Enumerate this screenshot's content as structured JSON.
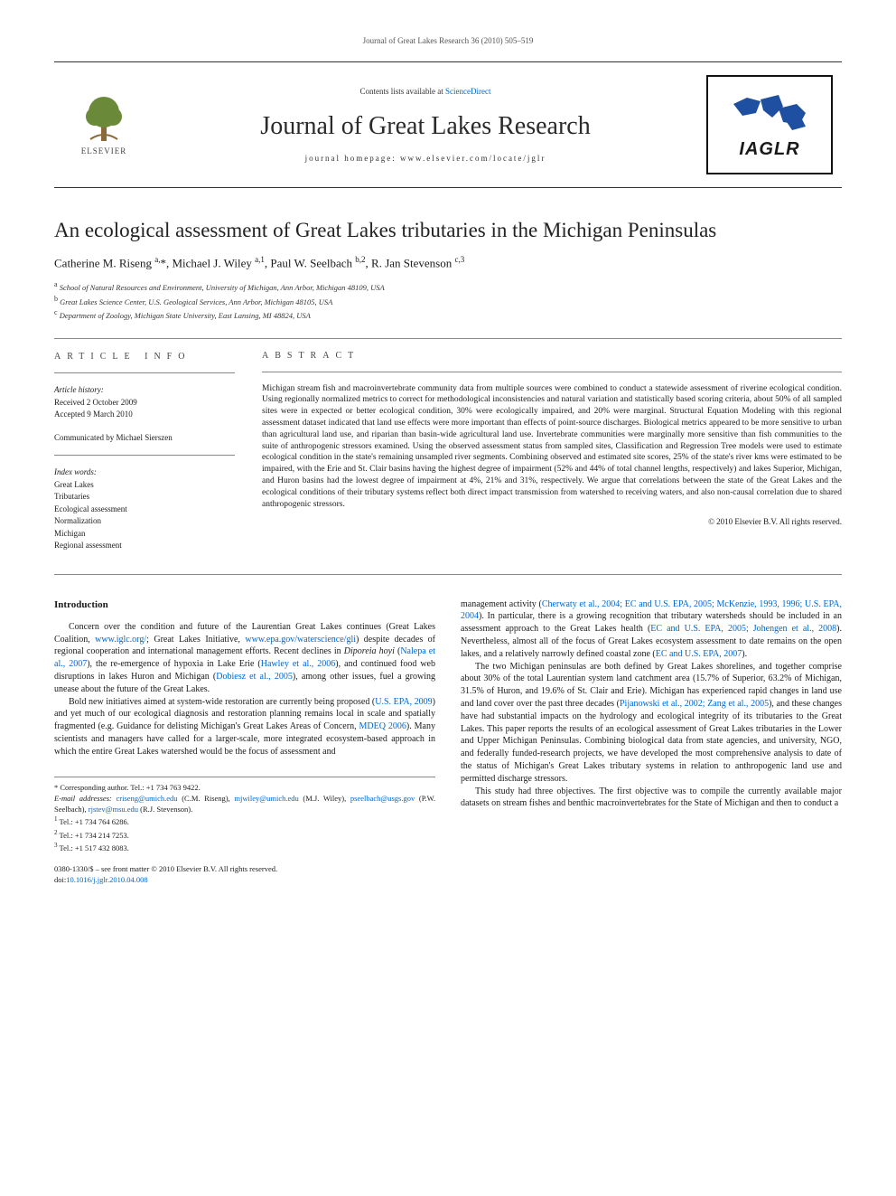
{
  "running_head": "Journal of Great Lakes Research 36 (2010) 505–519",
  "masthead": {
    "contents_prefix": "Contents lists available at ",
    "contents_link": "ScienceDirect",
    "journal_name": "Journal of Great Lakes Research",
    "homepage_prefix": "journal homepage: ",
    "homepage": "www.elsevier.com/locate/jglr",
    "elsevier_label": "ELSEVIER",
    "iaglr_label": "IAGLR",
    "elsevier_color": "#ee7f1a",
    "iaglr_fill": "#1e4fa0"
  },
  "title": "An ecological assessment of Great Lakes tributaries in the Michigan Peninsulas",
  "authors_html": "Catherine M. Riseng <sup>a,</sup>*, Michael J. Wiley <sup>a,1</sup>, Paul W. Seelbach <sup>b,2</sup>, R. Jan Stevenson <sup>c,3</sup>",
  "affiliations": [
    {
      "sup": "a",
      "text": "School of Natural Resources and Environment, University of Michigan, Ann Arbor, Michigan 48109, USA"
    },
    {
      "sup": "b",
      "text": "Great Lakes Science Center, U.S. Geological Services, Ann Arbor, Michigan 48105, USA"
    },
    {
      "sup": "c",
      "text": "Department of Zoology, Michigan State University, East Lansing, MI 48824, USA"
    }
  ],
  "article_info": {
    "label": "ARTICLE INFO",
    "history_heading": "Article history:",
    "received": "Received 2 October 2009",
    "accepted": "Accepted 9 March 2010",
    "communicated": "Communicated by Michael Sierszen",
    "index_heading": "Index words:",
    "keywords": [
      "Great Lakes",
      "Tributaries",
      "Ecological assessment",
      "Normalization",
      "Michigan",
      "Regional assessment"
    ]
  },
  "abstract": {
    "label": "ABSTRACT",
    "text": "Michigan stream fish and macroinvertebrate community data from multiple sources were combined to conduct a statewide assessment of riverine ecological condition. Using regionally normalized metrics to correct for methodological inconsistencies and natural variation and statistically based scoring criteria, about 50% of all sampled sites were in expected or better ecological condition, 30% were ecologically impaired, and 20% were marginal. Structural Equation Modeling with this regional assessment dataset indicated that land use effects were more important than effects of point-source discharges. Biological metrics appeared to be more sensitive to urban than agricultural land use, and riparian than basin-wide agricultural land use. Invertebrate communities were marginally more sensitive than fish communities to the suite of anthropogenic stressors examined. Using the observed assessment status from sampled sites, Classification and Regression Tree models were used to estimate ecological condition in the state's remaining unsampled river segments. Combining observed and estimated site scores, 25% of the state's river kms were estimated to be impaired, with the Erie and St. Clair basins having the highest degree of impairment (52% and 44% of total channel lengths, respectively) and lakes Superior, Michigan, and Huron basins had the lowest degree of impairment at 4%, 21% and 31%, respectively. We argue that correlations between the state of the Great Lakes and the ecological conditions of their tributary systems reflect both direct impact transmission from watershed to receiving waters, and also non-causal correlation due to shared anthropogenic stressors.",
    "copyright": "© 2010 Elsevier B.V. All rights reserved."
  },
  "body": {
    "intro_heading": "Introduction",
    "col1_p1": "Concern over the condition and future of the Laurentian Great Lakes continues (Great Lakes Coalition, <a href='#'>www.iglc.org/</a>; Great Lakes Initiative, <a href='#'>www.epa.gov/waterscience/gli</a>) despite decades of regional cooperation and international management efforts. Recent declines in <i>Diporeia hoyi</i> (<a href='#'>Nalepa et al., 2007</a>), the re-emergence of hypoxia in Lake Erie (<a href='#'>Hawley et al., 2006</a>), and continued food web disruptions in lakes Huron and Michigan (<a href='#'>Dobiesz et al., 2005</a>), among other issues, fuel a growing unease about the future of the Great Lakes.",
    "col1_p2": "Bold new initiatives aimed at system-wide restoration are currently being proposed (<a href='#'>U.S. EPA, 2009</a>) and yet much of our ecological diagnosis and restoration planning remains local in scale and spatially fragmented (e.g. Guidance for delisting Michigan's Great Lakes Areas of Concern, <a href='#'>MDEQ 2006</a>). Many scientists and managers have called for a larger-scale, more integrated ecosystem-based approach in which the entire Great Lakes watershed would be the focus of assessment and",
    "col2_p1": "management activity (<a href='#'>Cherwaty et al., 2004; EC and U.S. EPA, 2005; McKenzie, 1993, 1996; U.S. EPA, 2004</a>). In particular, there is a growing recognition that tributary watersheds should be included in an assessment approach to the Great Lakes health (<a href='#'>EC and U.S. EPA, 2005; Johengen et al., 2008</a>). Nevertheless, almost all of the focus of Great Lakes ecosystem assessment to date remains on the open lakes, and a relatively narrowly defined coastal zone (<a href='#'>EC and U.S. EPA, 2007</a>).",
    "col2_p2": "The two Michigan peninsulas are both defined by Great Lakes shorelines, and together comprise about 30% of the total Laurentian system land catchment area (15.7% of Superior, 63.2% of Michigan, 31.5% of Huron, and 19.6% of St. Clair and Erie). Michigan has experienced rapid changes in land use and land cover over the past three decades (<a href='#'>Pijanowski et al., 2002; Zang et al., 2005</a>), and these changes have had substantial impacts on the hydrology and ecological integrity of its tributaries to the Great Lakes. This paper reports the results of an ecological assessment of Great Lakes tributaries in the Lower and Upper Michigan Peninsulas. Combining biological data from state agencies, and university, NGO, and federally funded-research projects, we have developed the most comprehensive analysis to date of the status of Michigan's Great Lakes tributary systems in relation to anthropogenic land use and permitted discharge stressors.",
    "col2_p3": "This study had three objectives. The first objective was to compile the currently available major datasets on stream fishes and benthic macroinvertebrates for the State of Michigan and then to conduct a"
  },
  "footnotes": {
    "corresponding": "* Corresponding author. Tel.: +1 734 763 9422.",
    "emails_label": "E-mail addresses:",
    "emails": " <a href='#'>criseng@umich.edu</a> (C.M. Riseng), <a href='#'>mjwiley@umich.edu</a> (M.J. Wiley), <a href='#'>pseelbach@usgs.gov</a> (P.W. Seelbach), <a href='#'>rjstev@msu.edu</a> (R.J. Stevenson).",
    "tel1": "Tel.: +1 734 764 6286.",
    "tel2": "Tel.: +1 734 214 7253.",
    "tel3": "Tel.: +1 517 432 8083."
  },
  "footer": {
    "issn": "0380-1330/$ – see front matter © 2010 Elsevier B.V. All rights reserved.",
    "doi_prefix": "doi:",
    "doi": "10.1016/j.jglr.2010.04.008"
  },
  "style": {
    "page_bg": "#ffffff",
    "text_color": "#1a1a1a",
    "link_color": "#0066cc",
    "rule_color": "#888888",
    "title_fontsize": 23,
    "journal_name_fontsize": 28,
    "body_fontsize": 10,
    "abstract_fontsize": 9.5,
    "info_fontsize": 9,
    "footnote_fontsize": 8.5
  }
}
